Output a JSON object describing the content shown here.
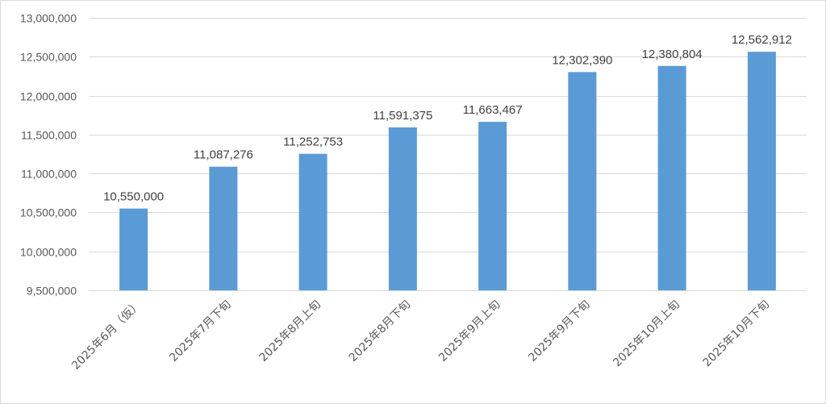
{
  "chart_data": {
    "type": "bar",
    "categories": [
      "2025年6月（仮）",
      "2025年7月下旬",
      "2025年8月上旬",
      "2025年8月下旬",
      "2025年9月上旬",
      "2025年9月下旬",
      "2025年10月上旬",
      "2025年10月下旬"
    ],
    "values": [
      10550000,
      11087276,
      11252753,
      11591375,
      11663467,
      12302390,
      12380804,
      12562912
    ],
    "data_labels": [
      "10,550,000",
      "11,087,276",
      "11,252,753",
      "11,591,375",
      "11,663,467",
      "12,302,390",
      "12,380,804",
      "12,562,912"
    ],
    "ylim": [
      9500000,
      13000000
    ],
    "y_ticks": [
      9500000,
      10000000,
      10500000,
      11000000,
      11500000,
      12000000,
      12500000,
      13000000
    ],
    "y_tick_labels": [
      "9,500,000",
      "10,000,000",
      "10,500,000",
      "11,000,000",
      "11,500,000",
      "12,000,000",
      "12,500,000",
      "13,000,000"
    ],
    "grid": true,
    "legend": "none",
    "bar_color": "#5b9bd5",
    "grid_color": "#d9d9d9",
    "title": "",
    "xlabel": "",
    "ylabel": ""
  }
}
